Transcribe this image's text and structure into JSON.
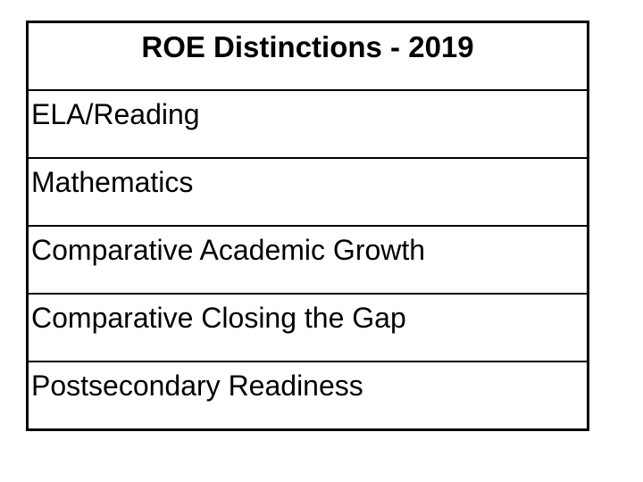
{
  "slide": {
    "table": {
      "title": "ROE Distinctions - 2019",
      "rows": [
        {
          "label": "ELA/Reading"
        },
        {
          "label": "Mathematics"
        },
        {
          "label": "Comparative Academic Growth"
        },
        {
          "label": "Comparative Closing the Gap"
        },
        {
          "label": "Postsecondary Readiness"
        }
      ]
    },
    "colors": {
      "text": "#000000",
      "border": "#000000",
      "background": "#ffffff"
    }
  }
}
